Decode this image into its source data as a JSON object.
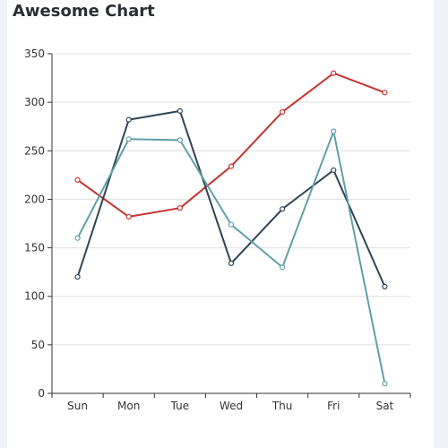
{
  "chart_data": {
    "type": "line",
    "title": "Awesome Chart",
    "categories": [
      "Sun",
      "Mon",
      "Tue",
      "Wed",
      "Thu",
      "Fri",
      "Sat"
    ],
    "ylim": [
      0,
      350
    ],
    "yticks": [
      0,
      50,
      100,
      150,
      200,
      250,
      300,
      350
    ],
    "grid": true,
    "series": [
      {
        "color": "#c23531",
        "values": [
          220,
          182,
          191,
          234,
          290,
          330,
          310
        ]
      },
      {
        "color": "#2f4554",
        "values": [
          120,
          282,
          291,
          134,
          190,
          230,
          110
        ]
      },
      {
        "color": "#61a0a8",
        "values": [
          160,
          262,
          261,
          174,
          130,
          270,
          10
        ]
      }
    ]
  }
}
